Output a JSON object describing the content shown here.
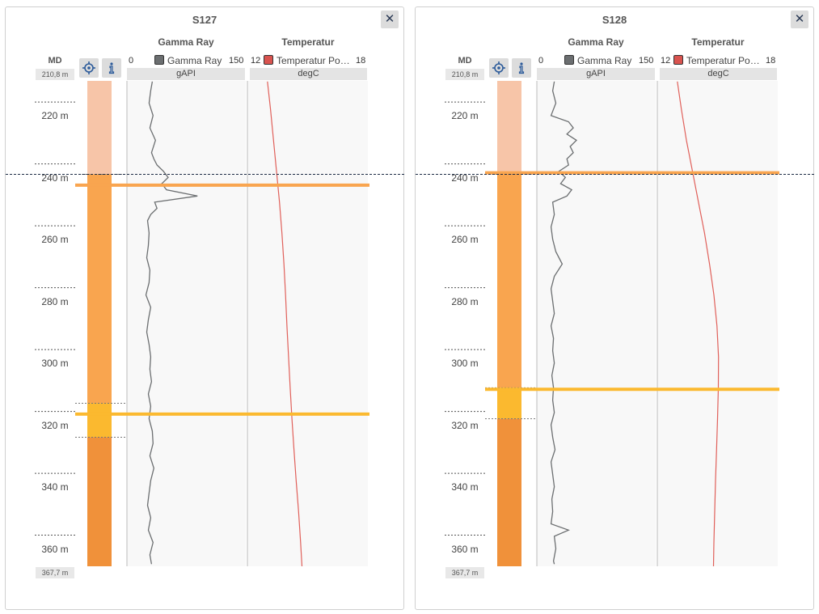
{
  "panels": [
    {
      "id": "p1",
      "title": "S127",
      "close_label": "✕",
      "md_header": "MD",
      "md_top": "210,8 m",
      "md_bottom": "367,7 m",
      "depth_ticks": [
        "220 m",
        "240 m",
        "260 m",
        "280 m",
        "300 m",
        "320 m",
        "340 m",
        "360 m"
      ],
      "tracks": {
        "gamma": {
          "title": "Gamma Ray",
          "min": "0",
          "max": "150",
          "legend": "Gamma Ray",
          "unit": "gAPI",
          "color": "#6b6e70"
        },
        "temp": {
          "title": "Temperatur",
          "min": "12",
          "max": "18",
          "legend": "Temperatur Pos...",
          "unit": "degC",
          "color": "#d9534f"
        }
      }
    },
    {
      "id": "p2",
      "title": "S128",
      "close_label": "✕",
      "md_header": "MD",
      "md_top": "210,8 m",
      "md_bottom": "367,7 m",
      "depth_ticks": [
        "220 m",
        "240 m",
        "260 m",
        "280 m",
        "300 m",
        "320 m",
        "340 m",
        "360 m"
      ],
      "tracks": {
        "gamma": {
          "title": "Gamma Ray",
          "min": "0",
          "max": "150",
          "legend": "Gamma Ray",
          "unit": "gAPI",
          "color": "#6b6e70"
        },
        "temp": {
          "title": "Temperatur",
          "min": "12",
          "max": "18",
          "legend": "Temperatur Pos...",
          "unit": "degC",
          "color": "#d9534f"
        }
      }
    }
  ],
  "chart_data": [
    {
      "type": "line",
      "well": "S127",
      "depth_range": [
        210.8,
        367.7
      ],
      "cursor_depth": 241.0,
      "zones": [
        {
          "from": 210.8,
          "to": 241.0,
          "color": "#f7c5a8"
        },
        {
          "from": 241.0,
          "to": 315.0,
          "color": "#f9a54f"
        },
        {
          "from": 315.0,
          "to": 326.0,
          "color": "#fbb92f"
        },
        {
          "from": 326.0,
          "to": 367.7,
          "color": "#f0913a"
        }
      ],
      "markers": [
        {
          "depth": 244.5,
          "color": "#f9a54f"
        },
        {
          "depth": 318.5,
          "color": "#fbb92f"
        }
      ],
      "gamma_ray": {
        "unit": "gAPI",
        "range": [
          0,
          150
        ],
        "points": [
          [
            211,
            32
          ],
          [
            214,
            30
          ],
          [
            218,
            28
          ],
          [
            222,
            33
          ],
          [
            226,
            29
          ],
          [
            230,
            36
          ],
          [
            234,
            31
          ],
          [
            236,
            34
          ],
          [
            238,
            38
          ],
          [
            240,
            46
          ],
          [
            242,
            52
          ],
          [
            244,
            44
          ],
          [
            246,
            50
          ],
          [
            248,
            89
          ],
          [
            250,
            35
          ],
          [
            252,
            38
          ],
          [
            254,
            30
          ],
          [
            256,
            26
          ],
          [
            260,
            28
          ],
          [
            264,
            27
          ],
          [
            268,
            25
          ],
          [
            272,
            29
          ],
          [
            276,
            28
          ],
          [
            280,
            24
          ],
          [
            284,
            30
          ],
          [
            288,
            27
          ],
          [
            292,
            25
          ],
          [
            296,
            28
          ],
          [
            300,
            30
          ],
          [
            304,
            29
          ],
          [
            308,
            31
          ],
          [
            312,
            27
          ],
          [
            316,
            30
          ],
          [
            320,
            28
          ],
          [
            324,
            32
          ],
          [
            328,
            33
          ],
          [
            332,
            29
          ],
          [
            336,
            34
          ],
          [
            340,
            30
          ],
          [
            344,
            28
          ],
          [
            348,
            26
          ],
          [
            352,
            30
          ],
          [
            356,
            27
          ],
          [
            360,
            33
          ],
          [
            364,
            29
          ],
          [
            367,
            31
          ]
        ]
      },
      "temperature": {
        "unit": "degC",
        "range": [
          12,
          18
        ],
        "points": [
          [
            211,
            13.0
          ],
          [
            220,
            13.15
          ],
          [
            230,
            13.3
          ],
          [
            240,
            13.45
          ],
          [
            250,
            13.6
          ],
          [
            260,
            13.72
          ],
          [
            270,
            13.82
          ],
          [
            280,
            13.9
          ],
          [
            290,
            13.97
          ],
          [
            300,
            14.05
          ],
          [
            310,
            14.13
          ],
          [
            320,
            14.22
          ],
          [
            330,
            14.32
          ],
          [
            340,
            14.43
          ],
          [
            350,
            14.55
          ],
          [
            360,
            14.65
          ],
          [
            367.7,
            14.72
          ]
        ]
      }
    },
    {
      "type": "line",
      "well": "S128",
      "depth_range": [
        210.8,
        367.7
      ],
      "cursor_depth": 241.0,
      "zones": [
        {
          "from": 210.8,
          "to": 241.0,
          "color": "#f7c5a8"
        },
        {
          "from": 241.0,
          "to": 310.0,
          "color": "#f9a54f"
        },
        {
          "from": 310.0,
          "to": 320.0,
          "color": "#fbb92f"
        },
        {
          "from": 320.0,
          "to": 367.7,
          "color": "#f0913a"
        }
      ],
      "markers": [
        {
          "depth": 240.5,
          "color": "#f9a54f"
        },
        {
          "depth": 310.5,
          "color": "#fbb92f"
        }
      ],
      "gamma_ray": {
        "unit": "gAPI",
        "range": [
          0,
          150
        ],
        "points": [
          [
            211,
            22
          ],
          [
            214,
            20
          ],
          [
            218,
            24
          ],
          [
            222,
            18
          ],
          [
            224,
            40
          ],
          [
            226,
            46
          ],
          [
            228,
            38
          ],
          [
            230,
            50
          ],
          [
            232,
            42
          ],
          [
            234,
            46
          ],
          [
            236,
            38
          ],
          [
            238,
            40
          ],
          [
            240,
            28
          ],
          [
            242,
            36
          ],
          [
            244,
            30
          ],
          [
            246,
            44
          ],
          [
            248,
            38
          ],
          [
            250,
            20
          ],
          [
            254,
            22
          ],
          [
            258,
            18
          ],
          [
            262,
            20
          ],
          [
            266,
            24
          ],
          [
            270,
            32
          ],
          [
            274,
            22
          ],
          [
            278,
            18
          ],
          [
            282,
            20
          ],
          [
            286,
            22
          ],
          [
            290,
            18
          ],
          [
            294,
            21
          ],
          [
            298,
            20
          ],
          [
            302,
            22
          ],
          [
            306,
            19
          ],
          [
            310,
            21
          ],
          [
            314,
            20
          ],
          [
            318,
            22
          ],
          [
            322,
            18
          ],
          [
            326,
            20
          ],
          [
            330,
            23
          ],
          [
            334,
            18
          ],
          [
            338,
            20
          ],
          [
            342,
            22
          ],
          [
            346,
            19
          ],
          [
            350,
            20
          ],
          [
            354,
            18
          ],
          [
            356,
            40
          ],
          [
            358,
            22
          ],
          [
            362,
            24
          ],
          [
            366,
            21
          ],
          [
            367,
            22
          ]
        ]
      },
      "temperature": {
        "unit": "degC",
        "range": [
          12,
          18
        ],
        "points": [
          [
            211,
            13.0
          ],
          [
            220,
            13.2
          ],
          [
            230,
            13.45
          ],
          [
            240,
            13.75
          ],
          [
            250,
            14.05
          ],
          [
            260,
            14.35
          ],
          [
            270,
            14.6
          ],
          [
            280,
            14.82
          ],
          [
            290,
            14.97
          ],
          [
            300,
            15.05
          ],
          [
            310,
            15.04
          ],
          [
            320,
            15.0
          ],
          [
            330,
            14.95
          ],
          [
            340,
            14.9
          ],
          [
            350,
            14.86
          ],
          [
            360,
            14.82
          ],
          [
            367.7,
            14.8
          ]
        ]
      }
    }
  ]
}
